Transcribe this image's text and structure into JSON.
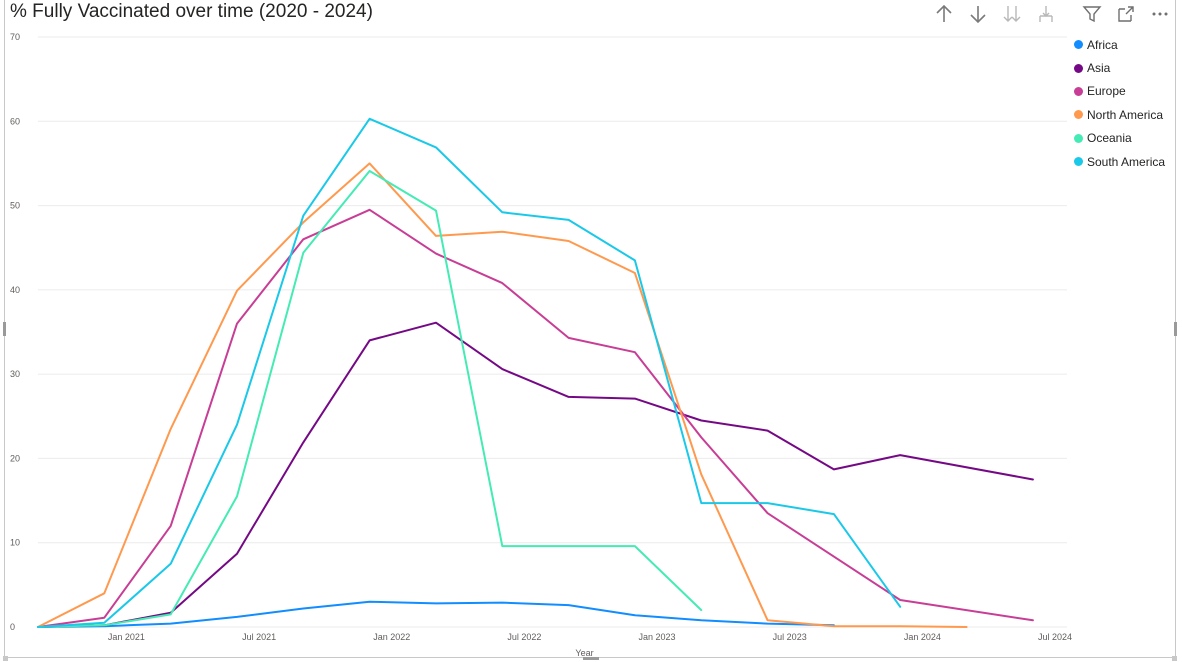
{
  "title": "% Fully Vaccinated over time (2020 - 2024)",
  "toolbar": {
    "icons": [
      "arrow-up-icon",
      "arrow-down-icon",
      "double-arrow-down-icon",
      "expand-hierarchy-icon",
      "filter-icon",
      "focus-mode-icon",
      "more-options-icon"
    ]
  },
  "chart_data": {
    "type": "line",
    "title": "% Fully Vaccinated over time (2020 - 2024)",
    "xlabel": "Year",
    "ylabel": "",
    "ylim": [
      0,
      70
    ],
    "yticks": [
      0,
      10,
      20,
      30,
      40,
      50,
      60,
      70
    ],
    "xlim": [
      "2020-09",
      "2024-07"
    ],
    "xticks": [
      {
        "label": "Jan 2021",
        "date": "2021-01"
      },
      {
        "label": "Jul 2021",
        "date": "2021-07"
      },
      {
        "label": "Jan 2022",
        "date": "2022-01"
      },
      {
        "label": "Jul 2022",
        "date": "2022-07"
      },
      {
        "label": "Jan 2023",
        "date": "2023-01"
      },
      {
        "label": "Jul 2023",
        "date": "2023-07"
      },
      {
        "label": "Jan 2024",
        "date": "2024-01"
      },
      {
        "label": "Jul 2024",
        "date": "2024-07"
      }
    ],
    "grid": true,
    "legend_position": "right",
    "series": [
      {
        "name": "Africa",
        "color": "#118DFF",
        "points": [
          [
            "2020-09",
            0
          ],
          [
            "2020-12",
            0.1
          ],
          [
            "2021-03",
            0.4
          ],
          [
            "2021-06",
            1.2
          ],
          [
            "2021-09",
            2.2
          ],
          [
            "2021-12",
            3.0
          ],
          [
            "2022-03",
            2.8
          ],
          [
            "2022-06",
            2.9
          ],
          [
            "2022-09",
            2.6
          ],
          [
            "2022-12",
            1.4
          ],
          [
            "2023-03",
            0.8
          ],
          [
            "2023-06",
            0.4
          ],
          [
            "2023-09",
            0.2
          ]
        ]
      },
      {
        "name": "Asia",
        "color": "#750985",
        "points": [
          [
            "2020-09",
            0
          ],
          [
            "2020-12",
            0.2
          ],
          [
            "2021-03",
            1.7
          ],
          [
            "2021-06",
            8.7
          ],
          [
            "2021-09",
            21.9
          ],
          [
            "2021-12",
            34.0
          ],
          [
            "2022-03",
            36.1
          ],
          [
            "2022-06",
            30.6
          ],
          [
            "2022-09",
            27.3
          ],
          [
            "2022-12",
            27.1
          ],
          [
            "2023-03",
            24.5
          ],
          [
            "2023-06",
            23.3
          ],
          [
            "2023-09",
            18.7
          ],
          [
            "2023-12",
            20.4
          ],
          [
            "2024-06",
            17.5
          ]
        ]
      },
      {
        "name": "Europe",
        "color": "#C83D95",
        "points": [
          [
            "2020-09",
            0
          ],
          [
            "2020-12",
            1.1
          ],
          [
            "2021-03",
            12.0
          ],
          [
            "2021-06",
            36.0
          ],
          [
            "2021-09",
            46.0
          ],
          [
            "2021-12",
            49.5
          ],
          [
            "2022-03",
            44.3
          ],
          [
            "2022-06",
            40.8
          ],
          [
            "2022-09",
            34.3
          ],
          [
            "2022-12",
            32.6
          ],
          [
            "2023-03",
            22.5
          ],
          [
            "2023-06",
            13.5
          ],
          [
            "2023-12",
            3.2
          ],
          [
            "2024-06",
            0.8
          ]
        ]
      },
      {
        "name": "North America",
        "color": "#FF994E",
        "points": [
          [
            "2020-09",
            0
          ],
          [
            "2020-12",
            4.0
          ],
          [
            "2021-03",
            23.5
          ],
          [
            "2021-06",
            39.9
          ],
          [
            "2021-09",
            48.0
          ],
          [
            "2021-12",
            55.0
          ],
          [
            "2022-03",
            46.4
          ],
          [
            "2022-06",
            46.9
          ],
          [
            "2022-09",
            45.8
          ],
          [
            "2022-12",
            42.0
          ],
          [
            "2023-03",
            18.1
          ],
          [
            "2023-06",
            0.8
          ],
          [
            "2023-09",
            0.1
          ],
          [
            "2023-12",
            0.1
          ],
          [
            "2024-03",
            0
          ]
        ]
      },
      {
        "name": "Oceania",
        "color": "#44EBB4",
        "points": [
          [
            "2020-09",
            0
          ],
          [
            "2020-12",
            0.2
          ],
          [
            "2021-03",
            1.5
          ],
          [
            "2021-06",
            15.5
          ],
          [
            "2021-09",
            44.4
          ],
          [
            "2021-12",
            54.1
          ],
          [
            "2022-03",
            49.4
          ],
          [
            "2022-06",
            9.6
          ],
          [
            "2022-09",
            9.6
          ],
          [
            "2022-12",
            9.6
          ],
          [
            "2023-03",
            2.0
          ]
        ]
      },
      {
        "name": "South America",
        "color": "#1AC8E8",
        "points": [
          [
            "2020-09",
            0
          ],
          [
            "2020-12",
            0.5
          ],
          [
            "2021-03",
            7.5
          ],
          [
            "2021-06",
            24.0
          ],
          [
            "2021-09",
            48.8
          ],
          [
            "2021-12",
            60.3
          ],
          [
            "2022-03",
            56.9
          ],
          [
            "2022-06",
            49.2
          ],
          [
            "2022-09",
            48.3
          ],
          [
            "2022-12",
            43.5
          ],
          [
            "2023-03",
            14.7
          ],
          [
            "2023-06",
            14.7
          ],
          [
            "2023-09",
            13.4
          ],
          [
            "2023-12",
            2.4
          ]
        ]
      }
    ]
  }
}
